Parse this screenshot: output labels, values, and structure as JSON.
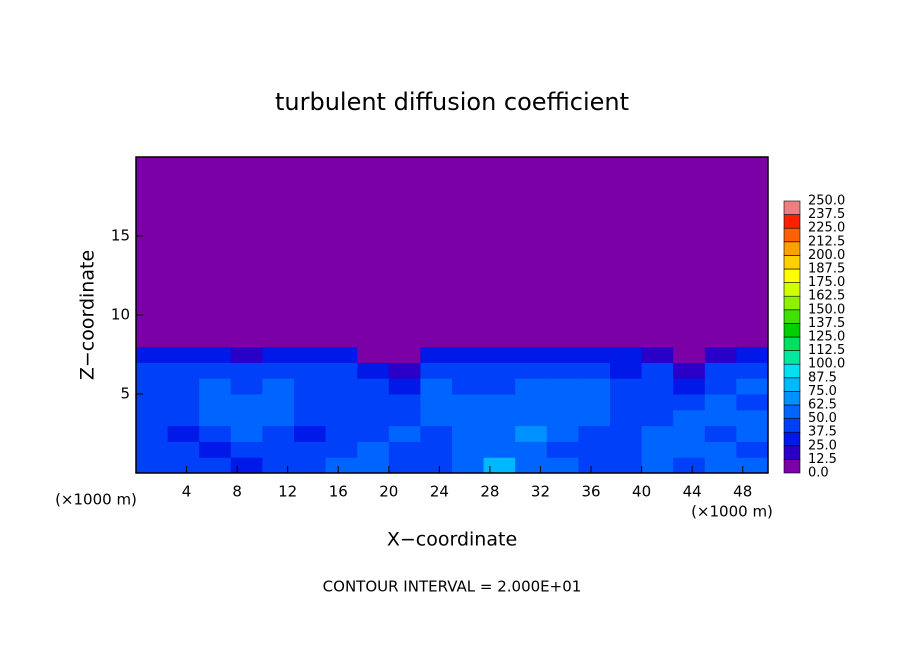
{
  "chart_data": {
    "type": "heatmap",
    "title": "turbulent diffusion coefficient",
    "x_label": "X−coordinate",
    "y_label": "Z−coordinate",
    "x_unit": "(×1000 m)",
    "footer": "CONTOUR INTERVAL = 2.000E+01",
    "xlim": [
      0,
      50
    ],
    "ylim": [
      0,
      20
    ],
    "xticks": [
      4,
      8,
      12,
      16,
      20,
      24,
      28,
      32,
      36,
      40,
      44,
      48
    ],
    "yticks": [
      5,
      10,
      15
    ],
    "x_edges": [
      0,
      2.5,
      5,
      7.5,
      10,
      12.5,
      15,
      17.5,
      20,
      22.5,
      25,
      27.5,
      30,
      32.5,
      35,
      37.5,
      40,
      42.5,
      45,
      47.5,
      50
    ],
    "z_edges": [
      0,
      1,
      2,
      3,
      4,
      5,
      6,
      7,
      8,
      20
    ],
    "values": [
      [
        40,
        45,
        40,
        35,
        40,
        45,
        55,
        60,
        40,
        45,
        60,
        80,
        55,
        50,
        45,
        40,
        50,
        45,
        55,
        50
      ],
      [
        45,
        40,
        35,
        45,
        40,
        40,
        45,
        50,
        45,
        40,
        60,
        55,
        60,
        45,
        40,
        45,
        50,
        55,
        50,
        45
      ],
      [
        40,
        35,
        45,
        50,
        45,
        35,
        45,
        40,
        50,
        45,
        55,
        50,
        65,
        55,
        45,
        40,
        50,
        60,
        45,
        50
      ],
      [
        45,
        40,
        50,
        55,
        50,
        40,
        40,
        45,
        40,
        50,
        60,
        55,
        60,
        60,
        50,
        45,
        45,
        55,
        50,
        55
      ],
      [
        40,
        45,
        55,
        50,
        55,
        45,
        45,
        40,
        45,
        55,
        50,
        50,
        55,
        60,
        55,
        45,
        45,
        40,
        50,
        45
      ],
      [
        45,
        40,
        50,
        45,
        50,
        45,
        40,
        40,
        35,
        50,
        45,
        45,
        50,
        55,
        50,
        45,
        40,
        35,
        45,
        50
      ],
      [
        40,
        45,
        45,
        40,
        45,
        40,
        40,
        25,
        20,
        45,
        40,
        40,
        45,
        45,
        40,
        35,
        40,
        20,
        45,
        45
      ],
      [
        35,
        35,
        30,
        20,
        30,
        35,
        25,
        10,
        5,
        25,
        30,
        35,
        35,
        30,
        35,
        25,
        15,
        5,
        20,
        30
      ],
      [
        0,
        0,
        0,
        0,
        0,
        0,
        0,
        0,
        0,
        0,
        0,
        0,
        0,
        0,
        0,
        0,
        0,
        0,
        0,
        0
      ]
    ],
    "levels": [
      {
        "value": 0,
        "label": "0.0"
      },
      {
        "value": 12.5,
        "label": "12.5"
      },
      {
        "value": 25,
        "label": "25.0"
      },
      {
        "value": 37.5,
        "label": "37.5"
      },
      {
        "value": 50,
        "label": "50.0"
      },
      {
        "value": 62.5,
        "label": "62.5"
      },
      {
        "value": 75,
        "label": "75.0"
      },
      {
        "value": 87.5,
        "label": "87.5"
      },
      {
        "value": 100,
        "label": "100.0"
      },
      {
        "value": 112.5,
        "label": "112.5"
      },
      {
        "value": 125,
        "label": "125.0"
      },
      {
        "value": 137.5,
        "label": "137.5"
      },
      {
        "value": 150,
        "label": "150.0"
      },
      {
        "value": 162.5,
        "label": "162.5"
      },
      {
        "value": 175,
        "label": "175.0"
      },
      {
        "value": 187.5,
        "label": "187.5"
      },
      {
        "value": 200,
        "label": "200.0"
      },
      {
        "value": 212.5,
        "label": "212.5"
      },
      {
        "value": 225,
        "label": "225.0"
      },
      {
        "value": 237.5,
        "label": "237.5"
      },
      {
        "value": 250,
        "label": "250.0"
      }
    ],
    "colors": [
      "#7b00a6",
      "#2a00c8",
      "#0018e8",
      "#0040f8",
      "#0064ff",
      "#0090ff",
      "#00b8ff",
      "#00e0f0",
      "#00e8a0",
      "#00e060",
      "#00d000",
      "#40e000",
      "#90f000",
      "#d0ff00",
      "#ffff00",
      "#ffd000",
      "#ffa000",
      "#ff6000",
      "#ff2000",
      "#f08080"
    ]
  }
}
